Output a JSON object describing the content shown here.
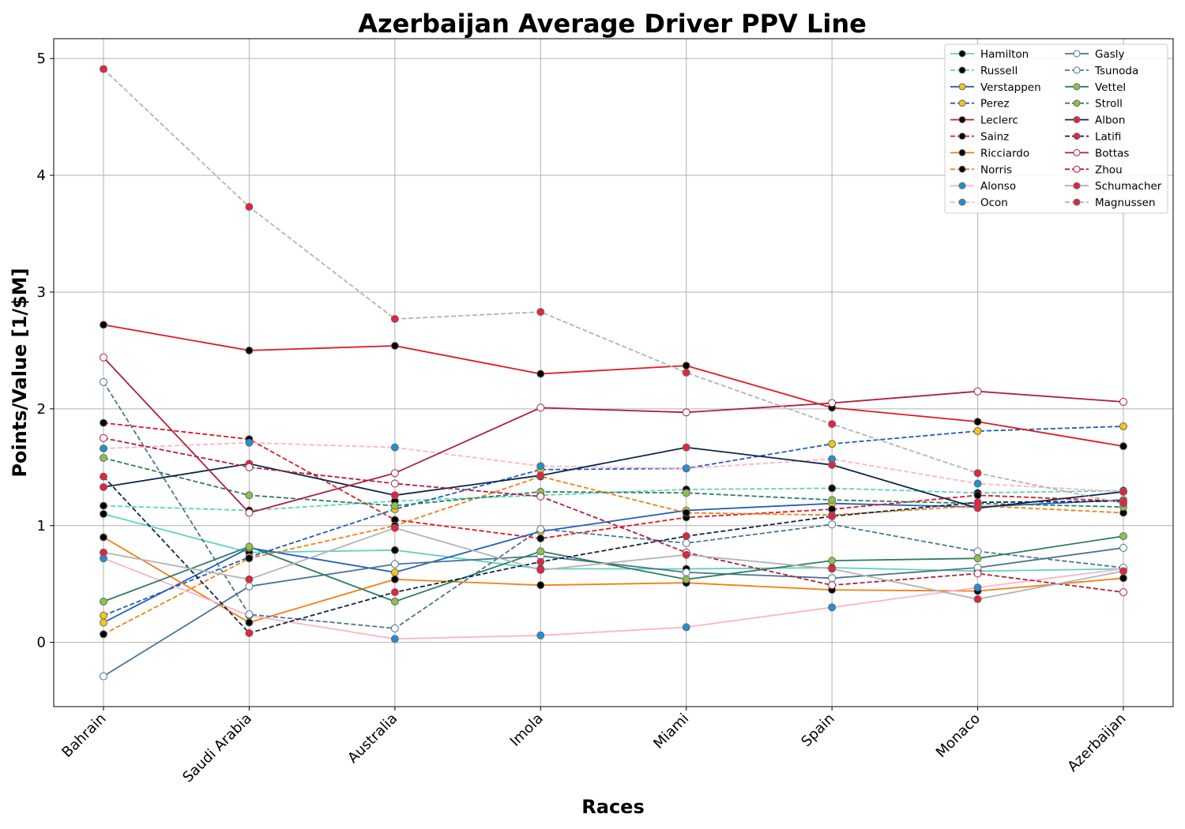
{
  "chart_data": {
    "type": "line",
    "title": "Azerbaijan Average Driver PPV Line",
    "xlabel": "Races",
    "ylabel": "Points/Value [1/$M]",
    "categories": [
      "Bahrain",
      "Saudi Arabia",
      "Australia",
      "Imola",
      "Miami",
      "Spain",
      "Monaco",
      "Azerbaijan"
    ],
    "ylim": [
      -0.55,
      5.17
    ],
    "yticks": [
      0,
      1,
      2,
      3,
      4,
      5
    ],
    "grid": true,
    "legend_position": "top-right",
    "series": [
      {
        "name": "Hamilton",
        "color": "#5fd3bc",
        "marker_fill": "#000000",
        "dashed": false,
        "values": [
          1.1,
          0.77,
          0.79,
          0.63,
          0.63,
          0.64,
          0.61,
          0.63
        ]
      },
      {
        "name": "Russell",
        "color": "#5fd3bc",
        "marker_fill": "#000000",
        "dashed": true,
        "values": [
          1.17,
          1.13,
          1.21,
          1.26,
          1.31,
          1.32,
          1.28,
          1.3
        ]
      },
      {
        "name": "Verstappen",
        "color": "#1f5bc1",
        "marker_fill": "#f5c518",
        "dashed": false,
        "values": [
          0.17,
          0.81,
          0.6,
          0.95,
          1.13,
          1.19,
          1.16,
          1.22
        ]
      },
      {
        "name": "Perez",
        "color": "#1f5bc1",
        "marker_fill": "#f5c518",
        "dashed": true,
        "values": [
          0.23,
          0.73,
          1.14,
          1.48,
          1.49,
          1.7,
          1.81,
          1.85
        ]
      },
      {
        "name": "Leclerc",
        "color": "#e0181f",
        "marker_fill": "#000000",
        "dashed": false,
        "values": [
          2.72,
          2.5,
          2.54,
          2.3,
          2.37,
          2.01,
          1.89,
          1.68
        ]
      },
      {
        "name": "Sainz",
        "color": "#e0181f",
        "marker_fill": "#000000",
        "dashed": true,
        "values": [
          1.88,
          1.74,
          1.05,
          0.89,
          1.07,
          1.14,
          1.26,
          1.21
        ]
      },
      {
        "name": "Ricciardo",
        "color": "#f47f0e",
        "marker_fill": "#000000",
        "dashed": false,
        "values": [
          0.9,
          0.17,
          0.54,
          0.49,
          0.51,
          0.45,
          0.44,
          0.55
        ]
      },
      {
        "name": "Norris",
        "color": "#f47f0e",
        "marker_fill": "#000000",
        "dashed": true,
        "values": [
          0.07,
          0.72,
          1.0,
          1.42,
          1.11,
          1.09,
          1.17,
          1.11
        ]
      },
      {
        "name": "Alonso",
        "color": "#ffb3c6",
        "marker_fill": "#1f8fd6",
        "dashed": false,
        "values": [
          0.72,
          0.23,
          0.03,
          0.06,
          0.13,
          0.3,
          0.47,
          0.63
        ]
      },
      {
        "name": "Ocon",
        "color": "#ffb3c6",
        "marker_fill": "#1f8fd6",
        "dashed": true,
        "values": [
          1.66,
          1.71,
          1.67,
          1.51,
          1.49,
          1.57,
          1.36,
          1.29
        ]
      },
      {
        "name": "Gasly",
        "color": "#4a7594",
        "marker_fill": "#ffffff",
        "dashed": false,
        "values": [
          -0.29,
          0.48,
          0.67,
          0.74,
          0.6,
          0.55,
          0.64,
          0.81
        ]
      },
      {
        "name": "Tsunoda",
        "color": "#4a7594",
        "marker_fill": "#ffffff",
        "dashed": true,
        "values": [
          2.23,
          0.24,
          0.12,
          0.97,
          0.85,
          1.01,
          0.78,
          0.64
        ]
      },
      {
        "name": "Vettel",
        "color": "#2e7d63",
        "marker_fill": "#8bc34a",
        "dashed": false,
        "values": [
          0.35,
          0.82,
          0.35,
          0.78,
          0.54,
          0.7,
          0.72,
          0.91
        ]
      },
      {
        "name": "Stroll",
        "color": "#2e7d63",
        "marker_fill": "#8bc34a",
        "dashed": true,
        "values": [
          1.58,
          1.26,
          1.17,
          1.29,
          1.28,
          1.22,
          1.19,
          1.16
        ]
      },
      {
        "name": "Albon",
        "color": "#0f2548",
        "marker_fill": "#e8213f",
        "dashed": false,
        "values": [
          1.33,
          1.53,
          1.26,
          1.43,
          1.67,
          1.52,
          1.15,
          1.29
        ]
      },
      {
        "name": "Latifi",
        "color": "#0f2548",
        "marker_fill": "#e8213f",
        "dashed": true,
        "values": [
          1.42,
          0.08,
          0.43,
          0.69,
          0.91,
          1.08,
          1.2,
          1.21
        ]
      },
      {
        "name": "Bottas",
        "color": "#b01e3f",
        "marker_fill": "#ffffff",
        "dashed": false,
        "values": [
          2.44,
          1.11,
          1.45,
          2.01,
          1.97,
          2.05,
          2.15,
          2.06
        ]
      },
      {
        "name": "Zhou",
        "color": "#b01e3f",
        "marker_fill": "#ffffff",
        "dashed": true,
        "values": [
          1.75,
          1.5,
          1.36,
          1.25,
          0.77,
          0.49,
          0.59,
          0.43
        ]
      },
      {
        "name": "Schumacher",
        "color": "#b3b3b3",
        "marker_fill": "#e8213f",
        "dashed": false,
        "values": [
          0.77,
          0.54,
          0.98,
          0.62,
          0.75,
          0.63,
          0.37,
          0.61
        ]
      },
      {
        "name": "Magnussen",
        "color": "#b3b3b3",
        "marker_fill": "#e8213f",
        "dashed": true,
        "values": [
          4.91,
          3.73,
          2.77,
          2.83,
          2.31,
          1.87,
          1.45,
          1.19
        ]
      }
    ]
  }
}
